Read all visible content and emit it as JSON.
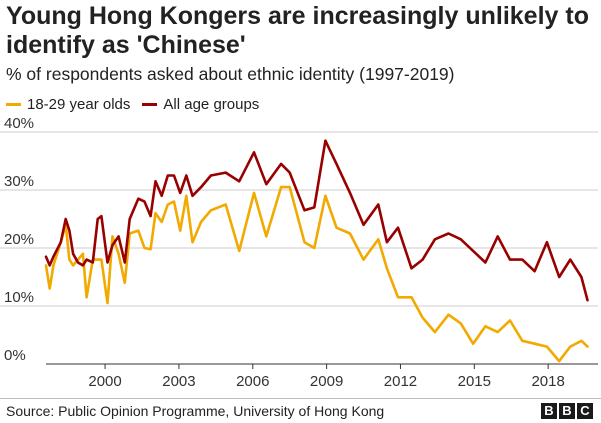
{
  "title": "Young Hong Kongers are increasingly unlikely to identify as 'Chinese'",
  "subtitle": "% of respondents asked about ethnic identity (1997-2019)",
  "source": "Source: Public Opinion Programme, University of Hong Kong",
  "logo": [
    "B",
    "B",
    "C"
  ],
  "colors": {
    "young": "#f2a900",
    "all": "#990000",
    "grid": "#cccccc",
    "axis": "#333333"
  },
  "chart_data": {
    "type": "line",
    "xlim": [
      1997.6,
      2019.7
    ],
    "ylim": [
      0,
      40
    ],
    "x_ticks": [
      {
        "value": 2000,
        "label": "2000"
      },
      {
        "value": 2003,
        "label": "2003"
      },
      {
        "value": 2006,
        "label": "2006"
      },
      {
        "value": 2009,
        "label": "2009"
      },
      {
        "value": 2012,
        "label": "2012"
      },
      {
        "value": 2015,
        "label": "2015"
      },
      {
        "value": 2018,
        "label": "2018"
      }
    ],
    "y_ticks": [
      {
        "value": 0,
        "label": "0%"
      },
      {
        "value": 10,
        "label": "10%"
      },
      {
        "value": 20,
        "label": "20%"
      },
      {
        "value": 30,
        "label": "30%"
      },
      {
        "value": 40,
        "label": "40%"
      }
    ],
    "grid": true,
    "legend_position": "top-left",
    "series": [
      {
        "name": "18-29 year olds",
        "color": "#f2a900",
        "x": [
          1997.6,
          1997.75,
          1997.9,
          1998.2,
          1998.4,
          1998.55,
          1998.7,
          1998.9,
          1999.1,
          1999.25,
          1999.5,
          1999.7,
          1999.85,
          2000.1,
          2000.3,
          2000.55,
          2000.8,
          2001.0,
          2001.35,
          2001.6,
          2001.85,
          2002.05,
          2002.3,
          2002.55,
          2002.8,
          2003.05,
          2003.3,
          2003.55,
          2003.9,
          2004.3,
          2004.9,
          2005.45,
          2006.05,
          2006.55,
          2007.15,
          2007.5,
          2008.1,
          2008.5,
          2008.95,
          2009.4,
          2009.95,
          2010.5,
          2011.1,
          2011.45,
          2011.9,
          2012.45,
          2012.9,
          2013.4,
          2013.95,
          2014.45,
          2014.95,
          2015.45,
          2015.95,
          2016.45,
          2016.95,
          2017.45,
          2017.95,
          2018.45,
          2018.9,
          2019.35,
          2019.6
        ],
        "values": [
          17,
          13,
          17,
          21,
          24,
          18,
          17,
          18,
          19,
          11.5,
          18,
          18,
          18,
          10.5,
          22,
          19,
          14,
          22.5,
          23,
          20,
          19.8,
          26,
          24.5,
          27.5,
          28,
          23,
          29,
          21,
          24.5,
          26.5,
          27.5,
          19.5,
          29.5,
          22,
          30.5,
          30.5,
          21,
          20,
          29,
          23.5,
          22.5,
          18,
          21.5,
          16.5,
          11.5,
          11.5,
          8,
          5.5,
          8.5,
          7,
          3.5,
          6.5,
          5.5,
          7.5,
          4,
          3.5,
          3,
          0.5,
          3,
          4,
          3
        ]
      },
      {
        "name": "All age groups",
        "color": "#990000",
        "x": [
          1997.6,
          1997.75,
          1997.9,
          1998.2,
          1998.4,
          1998.55,
          1998.7,
          1998.9,
          1999.1,
          1999.25,
          1999.5,
          1999.7,
          1999.85,
          2000.1,
          2000.3,
          2000.55,
          2000.8,
          2001.0,
          2001.35,
          2001.6,
          2001.85,
          2002.05,
          2002.3,
          2002.55,
          2002.8,
          2003.05,
          2003.3,
          2003.55,
          2003.9,
          2004.3,
          2004.9,
          2005.45,
          2006.05,
          2006.55,
          2007.15,
          2007.5,
          2008.1,
          2008.5,
          2008.95,
          2009.4,
          2009.95,
          2010.5,
          2011.1,
          2011.45,
          2011.9,
          2012.45,
          2012.9,
          2013.4,
          2013.95,
          2014.45,
          2014.95,
          2015.45,
          2015.95,
          2016.45,
          2016.95,
          2017.45,
          2017.95,
          2018.45,
          2018.9,
          2019.35,
          2019.6
        ],
        "values": [
          18.5,
          17,
          18.5,
          21,
          25,
          23,
          19,
          17.5,
          17,
          18,
          17.5,
          25,
          25.5,
          17.5,
          20.5,
          22,
          17.5,
          25,
          28.5,
          28,
          25.5,
          31.5,
          29,
          32.5,
          32.5,
          29.5,
          32.5,
          29,
          30.5,
          32.5,
          33,
          31.5,
          36.5,
          31,
          34.5,
          33,
          26.5,
          27,
          38.5,
          34.5,
          29.5,
          24,
          27.5,
          21,
          23.5,
          16.5,
          18,
          21.5,
          22.5,
          21.5,
          19.5,
          17.5,
          22,
          18,
          18,
          16,
          21,
          15,
          18,
          15,
          11
        ]
      }
    ]
  }
}
